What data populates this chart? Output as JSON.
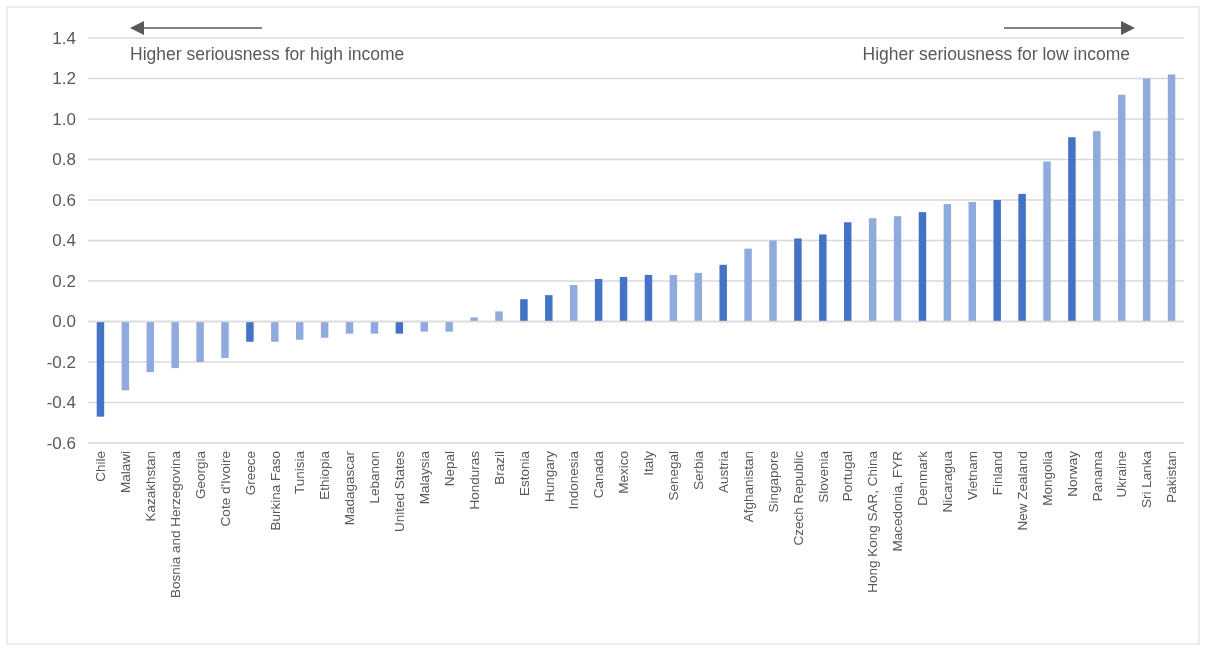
{
  "chart_data": {
    "type": "bar",
    "categories": [
      "Chile",
      "Malawi",
      "Kazakhstan",
      "Bosnia and Herzegovina",
      "Georgia",
      "Cote d'Ivoire",
      "Greece",
      "Burkina Faso",
      "Tunisia",
      "Ethiopia",
      "Madagascar",
      "Lebanon",
      "United States",
      "Malaysia",
      "Nepal",
      "Honduras",
      "Brazil",
      "Estonia",
      "Hungary",
      "Indonesia",
      "Canada",
      "Mexico",
      "Italy",
      "Senegal",
      "Serbia",
      "Austria",
      "Afghanistan",
      "Singapore",
      "Czech Republic",
      "Slovenia",
      "Portugal",
      "Hong Kong SAR, China",
      "Macedonia, FYR",
      "Denmark",
      "Nicaragua",
      "Vietnam",
      "Finland",
      "New Zealand",
      "Mongolia",
      "Norway",
      "Panama",
      "Ukraine",
      "Sri Lanka",
      "Pakistan"
    ],
    "values": [
      -0.47,
      -0.34,
      -0.25,
      -0.23,
      -0.2,
      -0.18,
      -0.1,
      -0.1,
      -0.09,
      -0.08,
      -0.06,
      -0.06,
      -0.06,
      -0.05,
      -0.05,
      0.02,
      0.05,
      0.11,
      0.13,
      0.18,
      0.21,
      0.22,
      0.23,
      0.23,
      0.24,
      0.28,
      0.36,
      0.4,
      0.41,
      0.43,
      0.49,
      0.51,
      0.52,
      0.54,
      0.58,
      0.59,
      0.6,
      0.63,
      0.79,
      0.91,
      0.94,
      1.12,
      1.2,
      1.22
    ],
    "colors": [
      "#4472c4",
      "#8faadc",
      "#8faadc",
      "#8faadc",
      "#8faadc",
      "#8faadc",
      "#4472c4",
      "#8faadc",
      "#8faadc",
      "#8faadc",
      "#8faadc",
      "#8faadc",
      "#4472c4",
      "#8faadc",
      "#8faadc",
      "#8faadc",
      "#8faadc",
      "#4472c4",
      "#4472c4",
      "#8faadc",
      "#4472c4",
      "#4472c4",
      "#4472c4",
      "#8faadc",
      "#8faadc",
      "#4472c4",
      "#8faadc",
      "#8faadc",
      "#4472c4",
      "#4472c4",
      "#4472c4",
      "#8faadc",
      "#8faadc",
      "#4472c4",
      "#8faadc",
      "#8faadc",
      "#4472c4",
      "#4472c4",
      "#8faadc",
      "#4472c4",
      "#8faadc",
      "#8faadc",
      "#8faadc",
      "#8faadc"
    ],
    "ylim": [
      -0.6,
      1.4
    ],
    "yticks": [
      {
        "value": -0.6,
        "label": "-0.6"
      },
      {
        "value": -0.4,
        "label": "-0.4"
      },
      {
        "value": -0.2,
        "label": "-0.2"
      },
      {
        "value": 0,
        "label": "0.0"
      },
      {
        "value": 0.2,
        "label": "0.2"
      },
      {
        "value": 0.4,
        "label": "0.4"
      },
      {
        "value": 0.6,
        "label": "0.6"
      },
      {
        "value": 0.8,
        "label": "0.8"
      },
      {
        "value": 1,
        "label": "1.0"
      },
      {
        "value": 1.2,
        "label": "1.2"
      },
      {
        "value": 1.4,
        "label": "1.4"
      }
    ],
    "grid": "y",
    "annotations": [
      "Higher seriousness for high income",
      "Higher seriousness for low income"
    ]
  }
}
